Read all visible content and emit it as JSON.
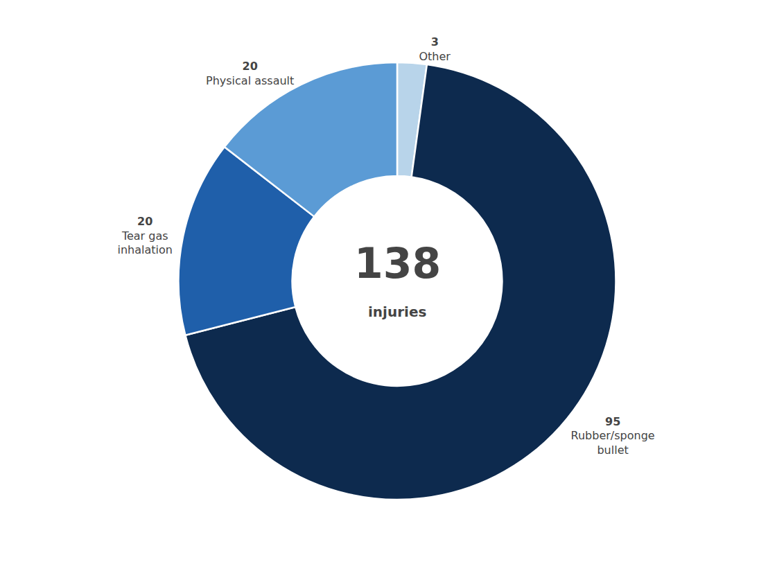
{
  "chart_data": {
    "type": "pie",
    "categories": [
      "Other",
      "Rubber/sponge\nbullet",
      "Tear gas\ninhalation",
      "Physical assault"
    ],
    "values": [
      3,
      95,
      20,
      20
    ],
    "colors": [
      "#b8d4ea",
      "#0d2a4e",
      "#1f5faa",
      "#5b9bd5"
    ],
    "data_labels": true,
    "total": 138,
    "total_label": "injuries"
  }
}
